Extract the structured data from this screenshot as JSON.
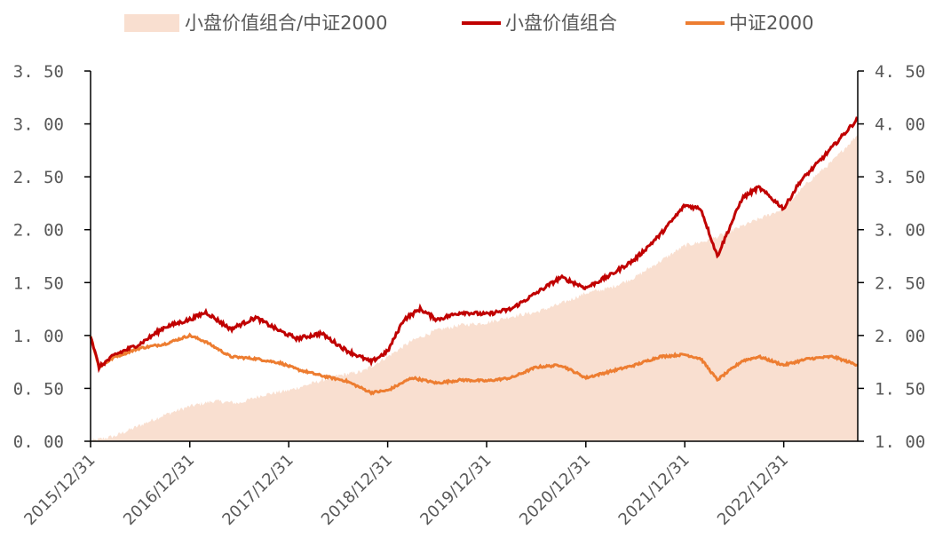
{
  "chart_data": {
    "type": "line",
    "title": "",
    "legend_position": "top",
    "legend": [
      {
        "label": "小盘价值组合/中证2000",
        "kind": "area",
        "color": "#f9dfd0"
      },
      {
        "label": "小盘价值组合",
        "kind": "line",
        "color": "#c00000"
      },
      {
        "label": "中证2000",
        "kind": "line",
        "color": "#ed7d31"
      }
    ],
    "x_tick_labels": [
      "2015/12/31",
      "2016/12/31",
      "2017/12/31",
      "2018/12/31",
      "2019/12/31",
      "2020/12/31",
      "2021/12/31",
      "2022/12/31"
    ],
    "y_left": {
      "range": [
        0,
        3.5
      ],
      "tick_labels": [
        "0. 00",
        "0. 50",
        "1. 00",
        "1. 50",
        "2. 00",
        "2. 50",
        "3. 00",
        "3. 50"
      ]
    },
    "y_right": {
      "range": [
        1.0,
        4.5
      ],
      "tick_labels": [
        "1. 00",
        "1. 50",
        "2. 00",
        "2. 50",
        "3. 00",
        "3. 50",
        "4. 00",
        "4. 50"
      ]
    },
    "grid": false,
    "series": [
      {
        "name": "小盘价值组合/中证2000",
        "type": "area",
        "axis": "left",
        "color": "#f9dfd0",
        "points": [
          [
            "2015/12/31",
            0.0
          ],
          [
            "2016/03/31",
            0.05
          ],
          [
            "2016/06/30",
            0.15
          ],
          [
            "2016/09/30",
            0.25
          ],
          [
            "2016/12/31",
            0.33
          ],
          [
            "2017/03/31",
            0.38
          ],
          [
            "2017/06/30",
            0.36
          ],
          [
            "2017/09/30",
            0.44
          ],
          [
            "2017/12/31",
            0.48
          ],
          [
            "2018/03/31",
            0.55
          ],
          [
            "2018/06/30",
            0.62
          ],
          [
            "2018/09/30",
            0.66
          ],
          [
            "2018/12/31",
            0.8
          ],
          [
            "2019/03/31",
            0.95
          ],
          [
            "2019/06/30",
            1.05
          ],
          [
            "2019/09/30",
            1.1
          ],
          [
            "2019/12/31",
            1.12
          ],
          [
            "2020/03/31",
            1.18
          ],
          [
            "2020/06/30",
            1.22
          ],
          [
            "2020/09/30",
            1.3
          ],
          [
            "2020/12/31",
            1.4
          ],
          [
            "2021/03/31",
            1.45
          ],
          [
            "2021/06/30",
            1.55
          ],
          [
            "2021/09/30",
            1.7
          ],
          [
            "2021/12/31",
            1.85
          ],
          [
            "2022/03/31",
            1.9
          ],
          [
            "2022/06/30",
            2.0
          ],
          [
            "2022/09/30",
            2.1
          ],
          [
            "2022/12/31",
            2.2
          ],
          [
            "2023/03/31",
            2.45
          ],
          [
            "2023/06/30",
            2.65
          ],
          [
            "2023/09/30",
            2.9
          ]
        ]
      },
      {
        "name": "小盘价值组合",
        "type": "line",
        "axis": "right",
        "color": "#c00000",
        "points": [
          [
            "2015/12/31",
            2.0
          ],
          [
            "2016/01/31",
            1.7
          ],
          [
            "2016/03/31",
            1.82
          ],
          [
            "2016/06/30",
            1.92
          ],
          [
            "2016/09/30",
            2.08
          ],
          [
            "2016/12/31",
            2.15
          ],
          [
            "2017/02/28",
            2.22
          ],
          [
            "2017/05/31",
            2.06
          ],
          [
            "2017/08/31",
            2.17
          ],
          [
            "2017/11/30",
            2.04
          ],
          [
            "2018/01/31",
            1.97
          ],
          [
            "2018/04/30",
            2.02
          ],
          [
            "2018/07/31",
            1.86
          ],
          [
            "2018/10/31",
            1.75
          ],
          [
            "2018/12/31",
            1.85
          ],
          [
            "2019/02/28",
            2.15
          ],
          [
            "2019/04/30",
            2.25
          ],
          [
            "2019/06/30",
            2.15
          ],
          [
            "2019/09/30",
            2.22
          ],
          [
            "2019/12/31",
            2.2
          ],
          [
            "2020/03/31",
            2.25
          ],
          [
            "2020/06/30",
            2.4
          ],
          [
            "2020/09/30",
            2.55
          ],
          [
            "2020/12/31",
            2.45
          ],
          [
            "2021/03/31",
            2.57
          ],
          [
            "2021/06/30",
            2.72
          ],
          [
            "2021/09/30",
            2.95
          ],
          [
            "2021/12/31",
            3.23
          ],
          [
            "2022/02/28",
            3.2
          ],
          [
            "2022/04/30",
            2.75
          ],
          [
            "2022/07/31",
            3.3
          ],
          [
            "2022/09/30",
            3.4
          ],
          [
            "2022/12/31",
            3.2
          ],
          [
            "2023/02/28",
            3.45
          ],
          [
            "2023/05/31",
            3.7
          ],
          [
            "2023/09/30",
            4.05
          ]
        ]
      },
      {
        "name": "中证2000",
        "type": "line",
        "axis": "left",
        "color": "#ed7d31",
        "points": [
          [
            "2015/12/31",
            1.0
          ],
          [
            "2016/01/31",
            0.7
          ],
          [
            "2016/03/31",
            0.8
          ],
          [
            "2016/06/30",
            0.88
          ],
          [
            "2016/09/30",
            0.92
          ],
          [
            "2016/12/31",
            1.0
          ],
          [
            "2017/02/28",
            0.94
          ],
          [
            "2017/05/31",
            0.8
          ],
          [
            "2017/08/31",
            0.78
          ],
          [
            "2017/11/30",
            0.74
          ],
          [
            "2018/01/31",
            0.68
          ],
          [
            "2018/04/30",
            0.62
          ],
          [
            "2018/07/31",
            0.57
          ],
          [
            "2018/10/31",
            0.46
          ],
          [
            "2018/12/31",
            0.48
          ],
          [
            "2019/03/31",
            0.6
          ],
          [
            "2019/06/30",
            0.55
          ],
          [
            "2019/09/30",
            0.58
          ],
          [
            "2019/12/31",
            0.57
          ],
          [
            "2020/03/31",
            0.6
          ],
          [
            "2020/06/30",
            0.7
          ],
          [
            "2020/09/30",
            0.72
          ],
          [
            "2020/12/31",
            0.6
          ],
          [
            "2021/03/31",
            0.66
          ],
          [
            "2021/06/30",
            0.72
          ],
          [
            "2021/09/30",
            0.8
          ],
          [
            "2021/12/31",
            0.82
          ],
          [
            "2022/02/28",
            0.78
          ],
          [
            "2022/04/30",
            0.58
          ],
          [
            "2022/07/31",
            0.76
          ],
          [
            "2022/09/30",
            0.8
          ],
          [
            "2022/12/31",
            0.72
          ],
          [
            "2023/03/31",
            0.78
          ],
          [
            "2023/06/30",
            0.8
          ],
          [
            "2023/09/30",
            0.72
          ]
        ]
      }
    ]
  }
}
